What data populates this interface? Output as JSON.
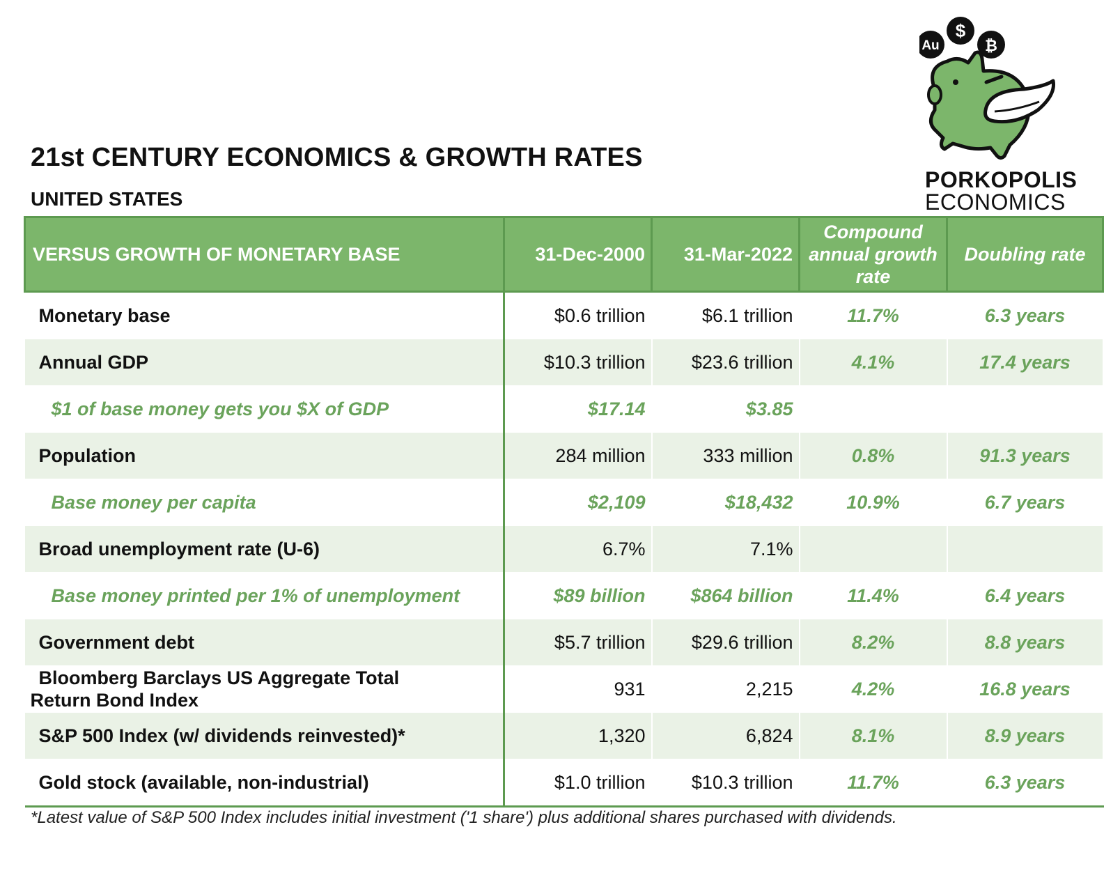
{
  "header": {
    "title": "21st CENTURY ECONOMICS & GROWTH RATES",
    "subtitle": "UNITED STATES"
  },
  "logo": {
    "icon": "flying-piggy-bank-icon",
    "coins": [
      "Au",
      "$",
      "₿"
    ],
    "word1": "PORKOPOLIS",
    "word2": "ECONOMICS",
    "colors": {
      "pig": "#7cb66b",
      "outline": "#111111"
    }
  },
  "table": {
    "headers": {
      "label": "VERSUS GROWTH OF MONETARY BASE",
      "date1": "31-Dec-2000",
      "date2": "31-Mar-2022",
      "cagr": "Compound annual growth rate",
      "doubling": "Doubling rate"
    },
    "rows": [
      {
        "label": "Monetary base",
        "v1": "$0.6 trillion",
        "v2": "$6.1 trillion",
        "cagr": "11.7%",
        "doubling": "6.3 years"
      },
      {
        "label": "Annual GDP",
        "v1": "$10.3 trillion",
        "v2": "$23.6 trillion",
        "cagr": "4.1%",
        "doubling": "17.4 years"
      },
      {
        "label": "$1 of base money gets you $X of GDP",
        "v1": "$17.14",
        "v2": "$3.85",
        "cagr": "",
        "doubling": ""
      },
      {
        "label": "Population",
        "v1": "284 million",
        "v2": "333 million",
        "cagr": "0.8%",
        "doubling": "91.3 years"
      },
      {
        "label": "Base money per capita",
        "v1": "$2,109",
        "v2": "$18,432",
        "cagr": "10.9%",
        "doubling": "6.7 years"
      },
      {
        "label": "Broad unemployment rate (U-6)",
        "v1": "6.7%",
        "v2": "7.1%",
        "cagr": "",
        "doubling": ""
      },
      {
        "label": "Base money printed per 1% of unemployment",
        "v1": "$89 billion",
        "v2": "$864 billion",
        "cagr": "11.4%",
        "doubling": "6.4 years"
      },
      {
        "label": "Government debt",
        "v1": "$5.7 trillion",
        "v2": "$29.6 trillion",
        "cagr": "8.2%",
        "doubling": "8.8 years"
      },
      {
        "label_line1": "Bloomberg Barclays US Aggregate Total",
        "label_line2": "Return Bond Index",
        "v1": "931",
        "v2": "2,215",
        "cagr": "4.2%",
        "doubling": "16.8 years"
      },
      {
        "label": "S&P 500 Index (w/ dividends reinvested)*",
        "v1": "1,320",
        "v2": "6,824",
        "cagr": "8.1%",
        "doubling": "8.9 years"
      },
      {
        "label": "Gold stock (available, non-industrial)",
        "v1": "$1.0 trillion",
        "v2": "$10.3 trillion",
        "cagr": "11.7%",
        "doubling": "6.3 years"
      }
    ]
  },
  "footnote": "*Latest value of S&P 500 Index includes initial investment ('1 share') plus additional shares purchased with dividends.",
  "colors": {
    "header_green": "#7cb66b",
    "accent_green_text": "#6aa35b",
    "alt_row": "#eaf2e6"
  }
}
